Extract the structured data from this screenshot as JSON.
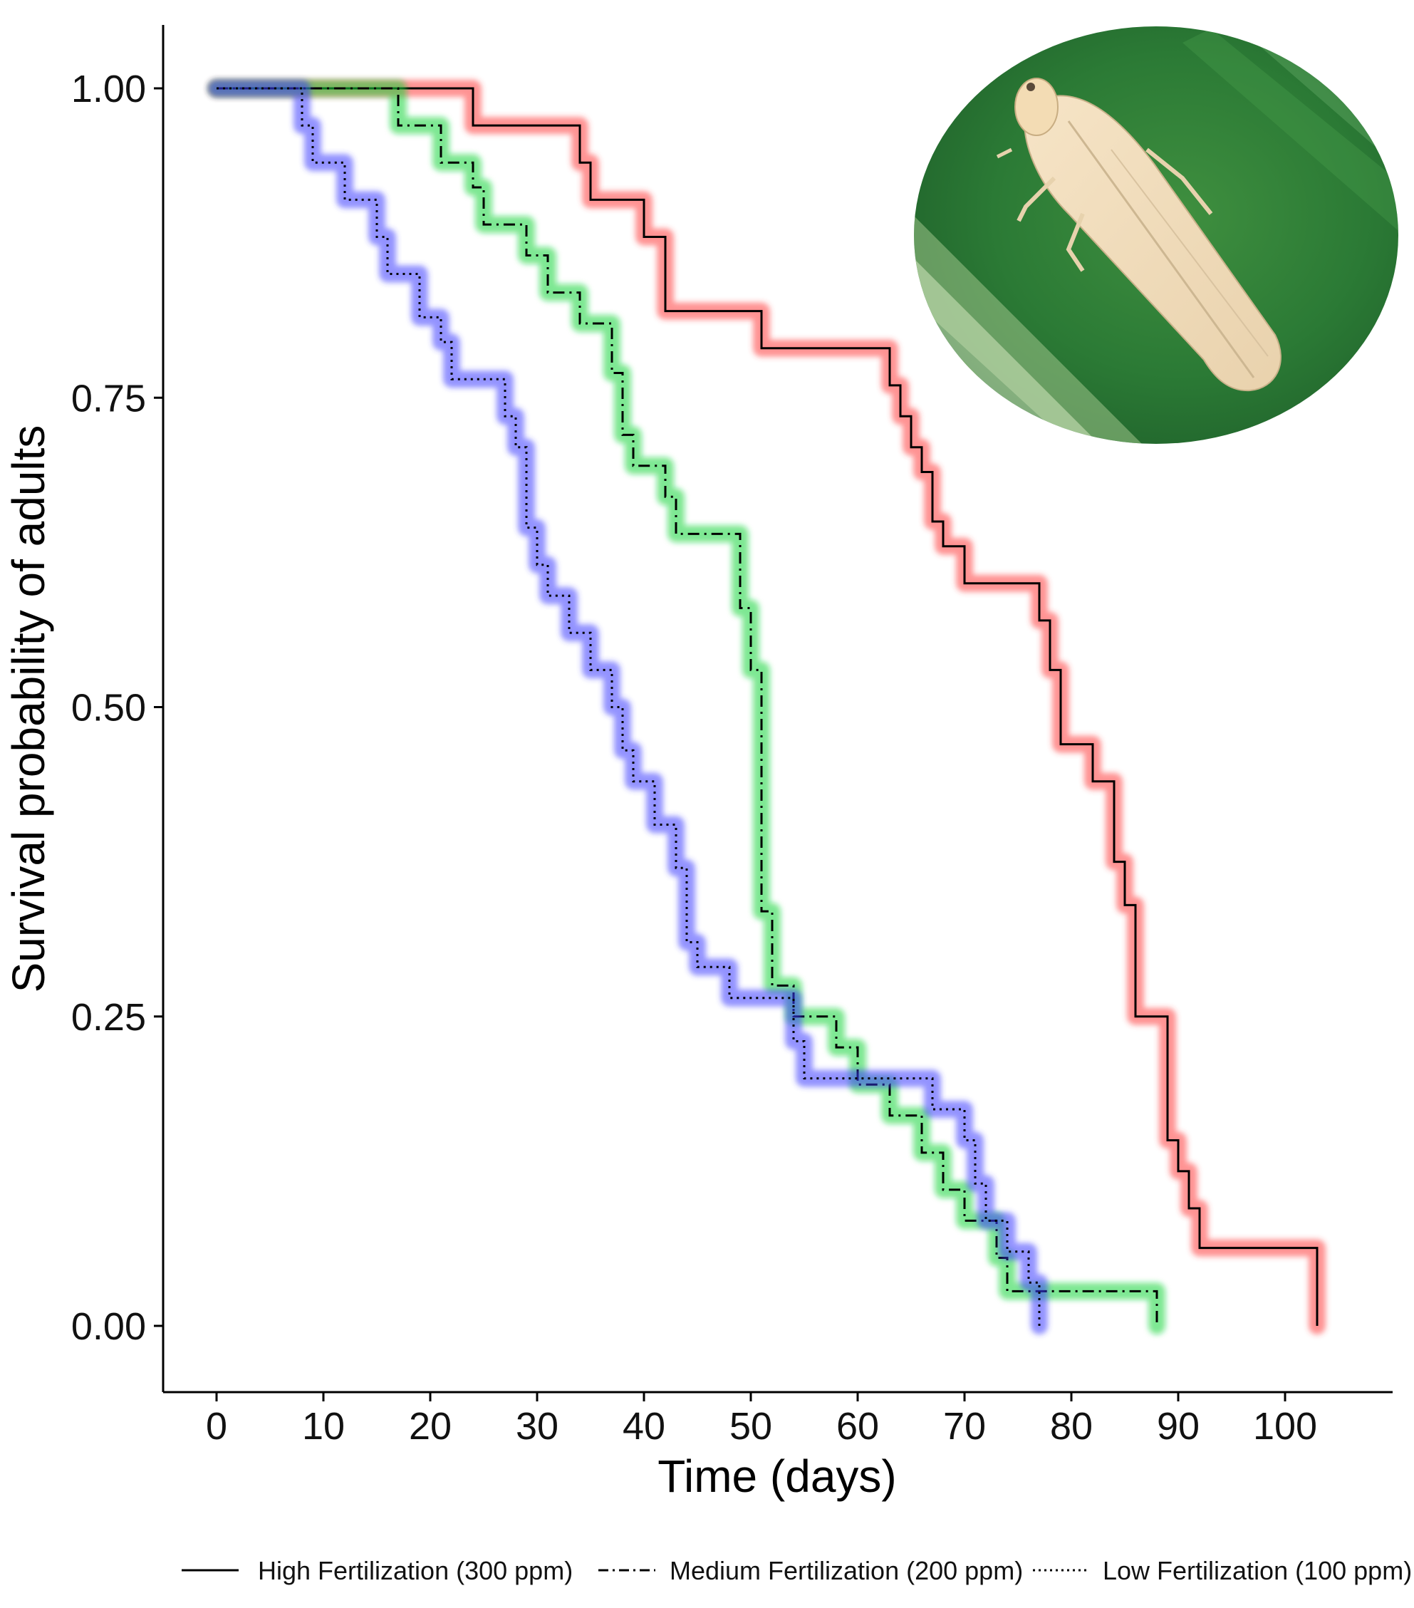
{
  "chart_data": {
    "type": "line",
    "step": true,
    "title": "",
    "xlabel": "Time (days)",
    "ylabel": "Survival probability of adults",
    "xlim": [
      -5,
      109
    ],
    "ylim": [
      -0.05,
      1.05
    ],
    "xticks": [
      0,
      10,
      20,
      30,
      40,
      50,
      60,
      70,
      80,
      90,
      100
    ],
    "xtick_labels": [
      "0",
      "10",
      "20",
      "30",
      "40",
      "50",
      "60",
      "70",
      "80",
      "90",
      "100"
    ],
    "yticks": [
      0,
      0.25,
      0.5,
      0.75,
      1
    ],
    "ytick_labels": [
      "0.00",
      "0.25",
      "0.50",
      "0.75",
      "1.00"
    ],
    "grid": false,
    "legend_position": "bottom",
    "inset_image": "leafhopper-photo",
    "series": [
      {
        "name": "High Fertilization (300 ppm)",
        "color": "#ff3b3b",
        "line_style": "solid",
        "points": [
          [
            0,
            1.0
          ],
          [
            24,
            0.97
          ],
          [
            34,
            0.94
          ],
          [
            35,
            0.91
          ],
          [
            40,
            0.88
          ],
          [
            42,
            0.82
          ],
          [
            51,
            0.79
          ],
          [
            63,
            0.76
          ],
          [
            64,
            0.735
          ],
          [
            65,
            0.71
          ],
          [
            66,
            0.69
          ],
          [
            67,
            0.65
          ],
          [
            68,
            0.63
          ],
          [
            70,
            0.6
          ],
          [
            77,
            0.57
          ],
          [
            78,
            0.53
          ],
          [
            79,
            0.47
          ],
          [
            82,
            0.44
          ],
          [
            84,
            0.375
          ],
          [
            85,
            0.34
          ],
          [
            86,
            0.25
          ],
          [
            89,
            0.15
          ],
          [
            90,
            0.125
          ],
          [
            91,
            0.095
          ],
          [
            92,
            0.063
          ],
          [
            103,
            0.0
          ]
        ]
      },
      {
        "name": "Medium Fertilization (200 ppm)",
        "color": "#19d63a",
        "line_style": "dashdot",
        "points": [
          [
            0,
            1.0
          ],
          [
            17,
            0.97
          ],
          [
            21,
            0.94
          ],
          [
            24,
            0.92
          ],
          [
            25,
            0.89
          ],
          [
            29,
            0.865
          ],
          [
            31,
            0.835
          ],
          [
            34,
            0.81
          ],
          [
            37,
            0.77
          ],
          [
            38,
            0.72
          ],
          [
            39,
            0.695
          ],
          [
            42,
            0.67
          ],
          [
            43,
            0.64
          ],
          [
            49,
            0.58
          ],
          [
            50,
            0.53
          ],
          [
            51,
            0.335
          ],
          [
            52,
            0.275
          ],
          [
            54,
            0.25
          ],
          [
            58,
            0.225
          ],
          [
            60,
            0.195
          ],
          [
            63,
            0.17
          ],
          [
            66,
            0.14
          ],
          [
            68,
            0.11
          ],
          [
            70,
            0.085
          ],
          [
            73,
            0.055
          ],
          [
            74,
            0.028
          ],
          [
            88,
            0.0
          ]
        ]
      },
      {
        "name": "Low Fertilization (100 ppm)",
        "color": "#3a3aff",
        "line_style": "dotted",
        "points": [
          [
            0,
            1.0
          ],
          [
            8,
            0.97
          ],
          [
            9,
            0.94
          ],
          [
            12,
            0.91
          ],
          [
            15,
            0.88
          ],
          [
            16,
            0.85
          ],
          [
            19,
            0.815
          ],
          [
            21,
            0.795
          ],
          [
            22,
            0.765
          ],
          [
            27,
            0.735
          ],
          [
            28,
            0.71
          ],
          [
            29,
            0.645
          ],
          [
            30,
            0.615
          ],
          [
            31,
            0.59
          ],
          [
            33,
            0.56
          ],
          [
            35,
            0.53
          ],
          [
            37,
            0.5
          ],
          [
            38,
            0.465
          ],
          [
            39,
            0.44
          ],
          [
            41,
            0.405
          ],
          [
            43,
            0.37
          ],
          [
            44,
            0.31
          ],
          [
            45,
            0.29
          ],
          [
            48,
            0.265
          ],
          [
            52,
            0.265
          ],
          [
            54,
            0.23
          ],
          [
            55,
            0.2
          ],
          [
            67,
            0.175
          ],
          [
            70,
            0.15
          ],
          [
            71,
            0.115
          ],
          [
            72,
            0.085
          ],
          [
            74,
            0.06
          ],
          [
            76,
            0.035
          ],
          [
            77,
            0.0
          ]
        ]
      }
    ]
  }
}
